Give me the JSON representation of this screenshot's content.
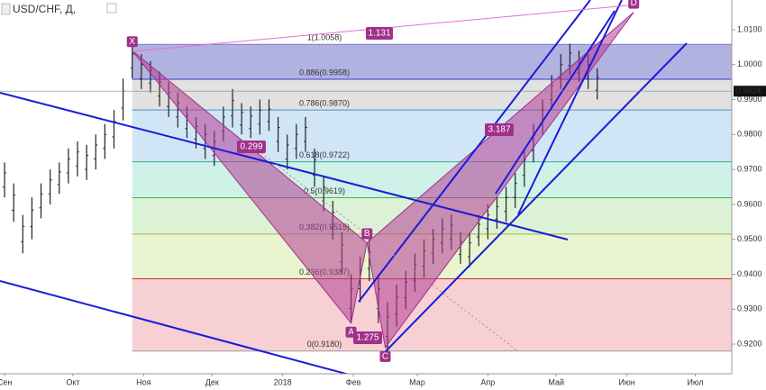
{
  "header": {
    "title": "USD/CHF, Д,"
  },
  "last_price": {
    "value": 0.9924,
    "label": "0.9924"
  },
  "chart_data": {
    "type": "ohlc",
    "title": "USD/CHF, Д,",
    "color": "#222222",
    "xlim": [
      -2,
      319
    ],
    "ylim": [
      0.9115,
      1.0185
    ],
    "xticks": [
      {
        "value": 0,
        "label": "Сен"
      },
      {
        "value": 30,
        "label": "Окт"
      },
      {
        "value": 61,
        "label": "Ноя"
      },
      {
        "value": 91,
        "label": "Дек"
      },
      {
        "value": 122,
        "label": "2018"
      },
      {
        "value": 153,
        "label": "Фев"
      },
      {
        "value": 181,
        "label": "Мар"
      },
      {
        "value": 212,
        "label": "Апр"
      },
      {
        "value": 242,
        "label": "Май"
      },
      {
        "value": 273,
        "label": "Июн"
      },
      {
        "value": 303,
        "label": "Июл"
      }
    ],
    "yticks": [
      {
        "value": 1.01,
        "label": "1.0100"
      },
      {
        "value": 1.0,
        "label": "1.0000"
      },
      {
        "value": 0.99,
        "label": "0.9900"
      },
      {
        "value": 0.98,
        "label": "0.9800"
      },
      {
        "value": 0.97,
        "label": "0.9700"
      },
      {
        "value": 0.96,
        "label": "0.9600"
      },
      {
        "value": 0.95,
        "label": "0.9500"
      },
      {
        "value": 0.94,
        "label": "0.9400"
      },
      {
        "value": 0.93,
        "label": "0.9300"
      },
      {
        "value": 0.92,
        "label": "0.9200"
      }
    ],
    "bars": {
      "x": [
        0,
        4,
        8,
        12,
        16,
        20,
        24,
        28,
        32,
        36,
        40,
        44,
        48,
        52,
        56,
        60,
        64,
        68,
        72,
        76,
        80,
        84,
        88,
        92,
        96,
        100,
        104,
        108,
        112,
        116,
        120,
        124,
        128,
        132,
        136,
        140,
        144,
        148,
        152,
        156,
        160,
        164,
        168,
        172,
        176,
        180,
        184,
        188,
        192,
        196,
        200,
        204,
        208,
        212,
        216,
        220,
        224,
        228,
        232,
        236,
        240,
        244,
        248,
        252,
        256,
        260
      ],
      "high": [
        0.972,
        0.966,
        0.957,
        0.962,
        0.966,
        0.97,
        0.972,
        0.976,
        0.978,
        0.977,
        0.98,
        0.983,
        0.987,
        0.996,
        1.006,
        1.003,
        1.001,
        0.998,
        0.995,
        0.992,
        0.988,
        0.985,
        0.983,
        0.981,
        0.988,
        0.993,
        0.989,
        0.988,
        0.99,
        0.99,
        0.985,
        0.98,
        0.983,
        0.985,
        0.976,
        0.968,
        0.961,
        0.952,
        0.94,
        0.945,
        0.95,
        0.94,
        0.932,
        0.937,
        0.941,
        0.946,
        0.95,
        0.953,
        0.956,
        0.957,
        0.952,
        0.952,
        0.957,
        0.96,
        0.962,
        0.965,
        0.969,
        0.976,
        0.983,
        0.99,
        0.997,
        1.003,
        1.006,
        1.004,
        1.003,
        0.999
      ],
      "low": [
        0.962,
        0.955,
        0.946,
        0.95,
        0.956,
        0.96,
        0.963,
        0.966,
        0.968,
        0.967,
        0.97,
        0.973,
        0.976,
        0.984,
        0.996,
        0.993,
        0.992,
        0.988,
        0.985,
        0.982,
        0.979,
        0.976,
        0.973,
        0.971,
        0.978,
        0.982,
        0.98,
        0.979,
        0.98,
        0.981,
        0.975,
        0.97,
        0.973,
        0.975,
        0.965,
        0.958,
        0.95,
        0.94,
        0.926,
        0.932,
        0.938,
        0.926,
        0.918,
        0.925,
        0.93,
        0.935,
        0.939,
        0.943,
        0.946,
        0.947,
        0.943,
        0.942,
        0.948,
        0.95,
        0.953,
        0.955,
        0.959,
        0.965,
        0.972,
        0.98,
        0.987,
        0.993,
        0.997,
        0.995,
        0.993,
        0.99
      ]
    },
    "fib": {
      "x": [
        56,
        319
      ],
      "levels": [
        {
          "label": "1(1.0058)",
          "value": 1.0058,
          "color": "#7a7ad0",
          "zone": "#a3a5da"
        },
        {
          "label": "0.886(0.9958)",
          "value": 0.9958,
          "color": "#3a3ad0",
          "zone": "#dcdcdc"
        },
        {
          "label": "0.786(0.9870)",
          "value": 0.987,
          "color": "#4a90c8",
          "zone": "#c8e2f4"
        },
        {
          "label": "0.618(0.9722)",
          "value": 0.9722,
          "color": "#3aaa8a",
          "zone": "#c6efe4"
        },
        {
          "label": "0.5(0.9619)",
          "value": 0.9619,
          "color": "#4caf50",
          "zone": "#d6f0d0"
        },
        {
          "label": "0.382(0.9515)",
          "value": 0.9515,
          "color": "#9abb3a",
          "zone": "#e6f2c8"
        },
        {
          "label": "0.236(0.9387)",
          "value": 0.9387,
          "color": "#d03030",
          "zone": "#f4c8cb"
        },
        {
          "label": "0(0.9180)",
          "value": 0.918,
          "color": "#999999",
          "zone": null
        }
      ]
    },
    "pattern": {
      "color": "rgba(180,60,150,0.55)",
      "points": [
        {
          "label": "X",
          "x": 56,
          "y": 1.004
        },
        {
          "label": "A",
          "x": 152,
          "y": 0.926
        },
        {
          "label": "B",
          "x": 159,
          "y": 0.949
        },
        {
          "label": "C",
          "x": 167,
          "y": 0.919
        },
        {
          "label": "D",
          "x": 276,
          "y": 1.015
        }
      ],
      "ratios": [
        "0.299",
        "1.275",
        "3.187",
        "1.131"
      ]
    }
  }
}
